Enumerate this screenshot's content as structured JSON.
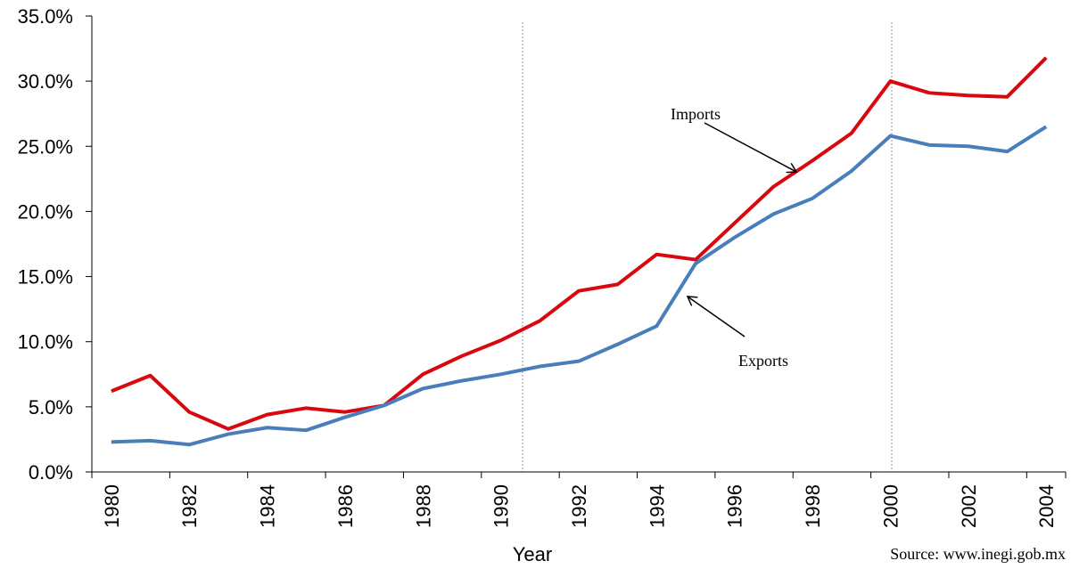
{
  "chart_data": {
    "type": "line",
    "x_label": "Year",
    "source": "Source: www.inegi.gob.mx",
    "annotations": [
      "Imports",
      "Exports"
    ],
    "categories": [
      "1980",
      null,
      "1982",
      null,
      "1984",
      null,
      "1986",
      null,
      "1988",
      null,
      "1990",
      null,
      "1992",
      null,
      "1994",
      null,
      "1996",
      null,
      "1998",
      null,
      "2000",
      null,
      "2002",
      null,
      "2004"
    ],
    "series": [
      {
        "name": "Imports",
        "color": "#d9070e",
        "values": [
          6.2,
          7.4,
          4.6,
          3.3,
          4.4,
          4.9,
          4.6,
          5.1,
          7.5,
          8.9,
          10.1,
          11.6,
          13.9,
          14.4,
          16.7,
          16.3,
          19.1,
          21.9,
          23.9,
          26.0,
          30.0,
          29.1,
          28.9,
          28.8,
          31.8
        ]
      },
      {
        "name": "Exports",
        "color": "#4a7ebb",
        "values": [
          2.3,
          2.4,
          2.1,
          2.9,
          3.4,
          3.2,
          4.2,
          5.1,
          6.4,
          7.0,
          7.5,
          8.1,
          8.5,
          9.8,
          11.2,
          16.0,
          18.0,
          19.8,
          21.0,
          23.1,
          25.8,
          25.1,
          25.0,
          24.6,
          26.5
        ]
      }
    ],
    "ylim": [
      0,
      35
    ],
    "yticks": [
      {
        "value": 0,
        "label": "0.0%"
      },
      {
        "value": 5,
        "label": "5.0%"
      },
      {
        "value": 10,
        "label": "10.0%"
      },
      {
        "value": 15,
        "label": "15.0%"
      },
      {
        "value": 20,
        "label": "20.0%"
      },
      {
        "value": 25,
        "label": "25.0%"
      },
      {
        "value": 30,
        "label": "30.0%"
      },
      {
        "value": 35,
        "label": "35.0%"
      }
    ]
  }
}
